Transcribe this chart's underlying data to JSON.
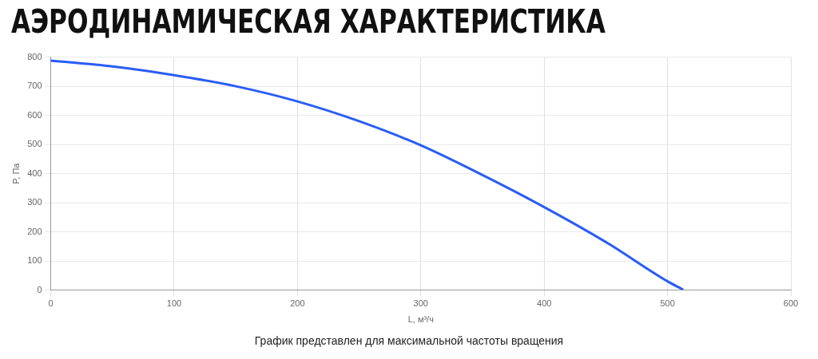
{
  "chart_data": {
    "type": "line",
    "title": "АЭРОДИНАМИЧЕСКАЯ ХАРАКТЕРИСТИКА",
    "xlabel": "L, м³/ч",
    "ylabel": "P, Па",
    "x": [
      0,
      50,
      100,
      150,
      200,
      250,
      300,
      350,
      400,
      450,
      500,
      512
    ],
    "series": [
      {
        "color": "#2a5cf5",
        "values": [
          788,
          768,
          738,
          700,
          648,
          580,
          497,
          395,
          285,
          165,
          30,
          3
        ]
      }
    ],
    "xlim": [
      0,
      600
    ],
    "xticks": [
      0,
      100,
      200,
      300,
      400,
      500,
      600
    ],
    "ylim": [
      0,
      800
    ],
    "yticks": [
      0,
      100,
      200,
      300,
      400,
      500,
      600,
      700,
      800
    ],
    "grid": true,
    "legend": false,
    "marker": "none",
    "line_style": "solid",
    "annotations": [
      "График представлен для максимальной частоты вращения"
    ]
  }
}
